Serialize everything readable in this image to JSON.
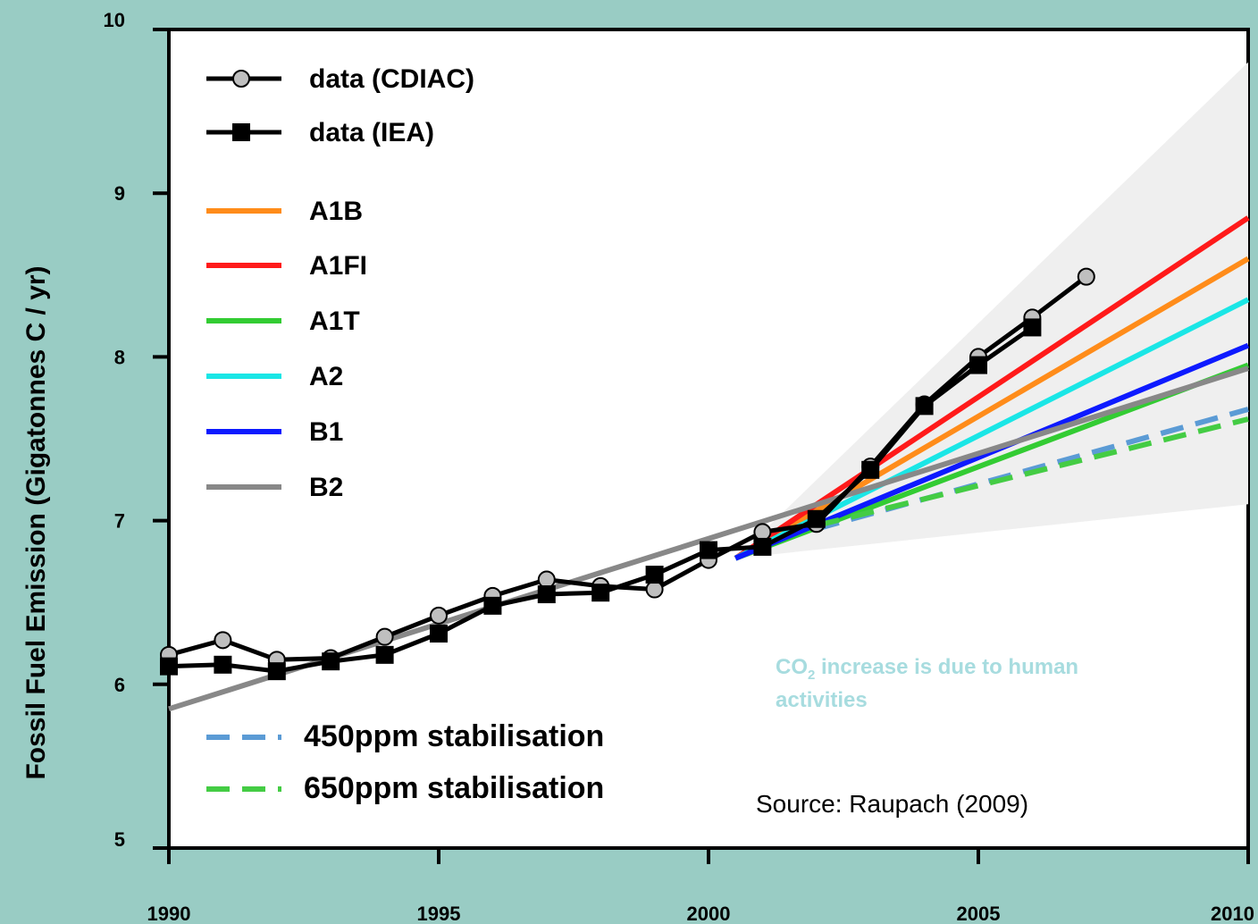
{
  "chart_data": {
    "type": "line",
    "ylabel": "Fossil Fuel Emission (Gigatonnes C / yr)",
    "xlim": [
      1990,
      2010
    ],
    "ylim": [
      5,
      10
    ],
    "x_ticks": [
      "1990",
      "1995",
      "2000",
      "2005",
      "2010"
    ],
    "y_ticks": [
      "5",
      "6",
      "7",
      "8",
      "9",
      "10"
    ],
    "grid": false,
    "legend_position": "left",
    "uncertainty_band": {
      "x": [
        2000.5,
        2010
      ],
      "upper": [
        6.77,
        9.8
      ],
      "lower": [
        6.77,
        7.1
      ]
    },
    "series": [
      {
        "name": "data (CDIAC)",
        "color": "#000000",
        "marker": "circle",
        "x": [
          1990,
          1991,
          1992,
          1993,
          1994,
          1995,
          1996,
          1997,
          1998,
          1999,
          2000,
          2001,
          2002,
          2003,
          2004,
          2005,
          2006,
          2007
        ],
        "y": [
          6.18,
          6.27,
          6.15,
          6.16,
          6.29,
          6.42,
          6.54,
          6.64,
          6.6,
          6.58,
          6.76,
          6.93,
          6.98,
          7.33,
          7.71,
          8.0,
          8.24,
          8.49
        ]
      },
      {
        "name": "data (IEA)",
        "color": "#000000",
        "marker": "square",
        "x": [
          1990,
          1991,
          1992,
          1993,
          1994,
          1995,
          1996,
          1997,
          1998,
          1999,
          2000,
          2001,
          2002,
          2003,
          2004,
          2005,
          2006
        ],
        "y": [
          6.11,
          6.12,
          6.08,
          6.14,
          6.18,
          6.31,
          6.48,
          6.55,
          6.56,
          6.67,
          6.82,
          6.84,
          7.01,
          7.31,
          7.7,
          7.95,
          8.18
        ]
      },
      {
        "name": "A1B",
        "color": "#ff8c1a",
        "x": [
          2000.5,
          2010
        ],
        "y": [
          6.77,
          8.6
        ]
      },
      {
        "name": "A1FI",
        "color": "#ff1a1a",
        "x": [
          2000.5,
          2010
        ],
        "y": [
          6.77,
          8.85
        ]
      },
      {
        "name": "A1T",
        "color": "#33cc33",
        "x": [
          2000.5,
          2010
        ],
        "y": [
          6.77,
          7.95
        ]
      },
      {
        "name": "A2",
        "color": "#1ae6e6",
        "x": [
          2000.5,
          2010
        ],
        "y": [
          6.77,
          8.35
        ]
      },
      {
        "name": "B1",
        "color": "#0d1aff",
        "x": [
          2000.5,
          2010
        ],
        "y": [
          6.77,
          8.07
        ]
      },
      {
        "name": "B2",
        "color": "#888888",
        "x": [
          1990,
          2010
        ],
        "y": [
          5.85,
          7.93
        ]
      },
      {
        "name": "450ppm stabilisation",
        "color": "#5b9bd5",
        "dash": true,
        "x": [
          2002,
          2010
        ],
        "y": [
          6.95,
          7.68
        ]
      },
      {
        "name": "650ppm stabilisation",
        "color": "#44cc44",
        "dash": true,
        "x": [
          2002,
          2010
        ],
        "y": [
          6.97,
          7.62
        ]
      }
    ],
    "annotations": {
      "note_line1_prefix": "CO",
      "note_line1_sub": "2",
      "note_line1_suffix": " increase is due to human",
      "note_line2": "activities",
      "source": "Source: Raupach (2009)"
    }
  }
}
